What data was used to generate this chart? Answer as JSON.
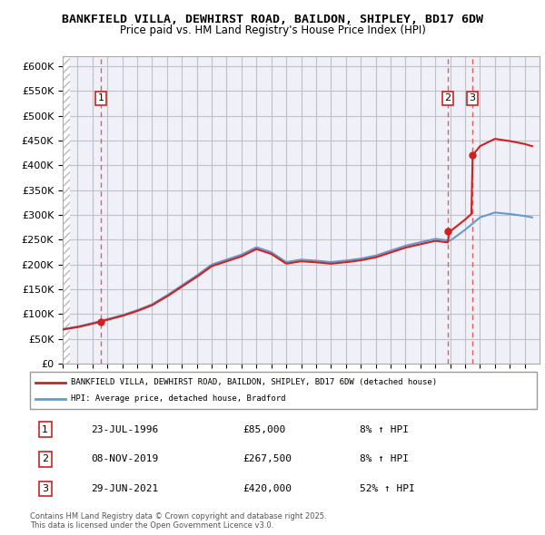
{
  "title1": "BANKFIELD VILLA, DEWHIRST ROAD, BAILDON, SHIPLEY, BD17 6DW",
  "title2": "Price paid vs. HM Land Registry's House Price Index (HPI)",
  "ylabel": "",
  "yticks": [
    0,
    50000,
    100000,
    150000,
    200000,
    250000,
    300000,
    350000,
    400000,
    450000,
    500000,
    550000,
    600000
  ],
  "ytick_labels": [
    "£0",
    "£50K",
    "£100K",
    "£150K",
    "£200K",
    "£250K",
    "£300K",
    "£350K",
    "£400K",
    "£450K",
    "£500K",
    "£550K",
    "£600K"
  ],
  "xmin": 1994.0,
  "xmax": 2026.0,
  "ymin": 0,
  "ymax": 620000,
  "sale_dates": [
    1996.55,
    2019.85,
    2021.5
  ],
  "sale_prices": [
    85000,
    267500,
    420000
  ],
  "sale_labels": [
    "1",
    "2",
    "3"
  ],
  "legend_label_red": "BANKFIELD VILLA, DEWHIRST ROAD, BAILDON, SHIPLEY, BD17 6DW (detached house)",
  "legend_label_blue": "HPI: Average price, detached house, Bradford",
  "transaction_table": [
    {
      "label": "1",
      "date": "23-JUL-1996",
      "price": "£85,000",
      "change": "8% ↑ HPI"
    },
    {
      "label": "2",
      "date": "08-NOV-2019",
      "price": "£267,500",
      "change": "8% ↑ HPI"
    },
    {
      "label": "3",
      "date": "29-JUN-2021",
      "price": "£420,000",
      "change": "52% ↑ HPI"
    }
  ],
  "footer": "Contains HM Land Registry data © Crown copyright and database right 2025.\nThis data is licensed under the Open Government Licence v3.0.",
  "bg_hatch_color": "#d0d0d0",
  "grid_color": "#c0c0c8",
  "dashed_line_color": "#e06060"
}
